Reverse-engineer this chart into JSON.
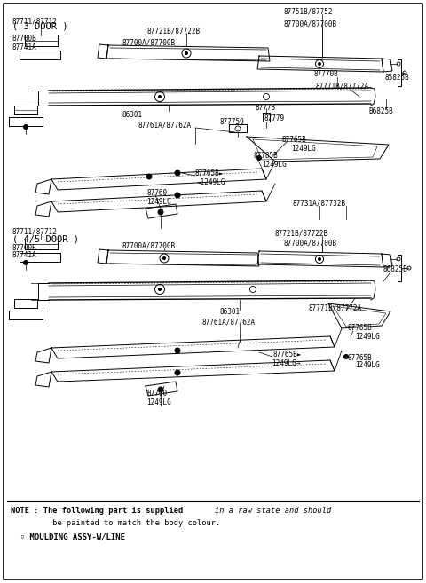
{
  "bg_color": "#ffffff",
  "section1_label": "( 3 DOOR )",
  "section2_label": "( 4/5 DOOR )",
  "note_bold_start": "NOTE : The following part is supplied ",
  "note_italic": "in a raw state and should",
  "note_line2": "         be painted to match the body colour.",
  "note_line3": "  ◦ MOULDING ASSY-W/LINE"
}
